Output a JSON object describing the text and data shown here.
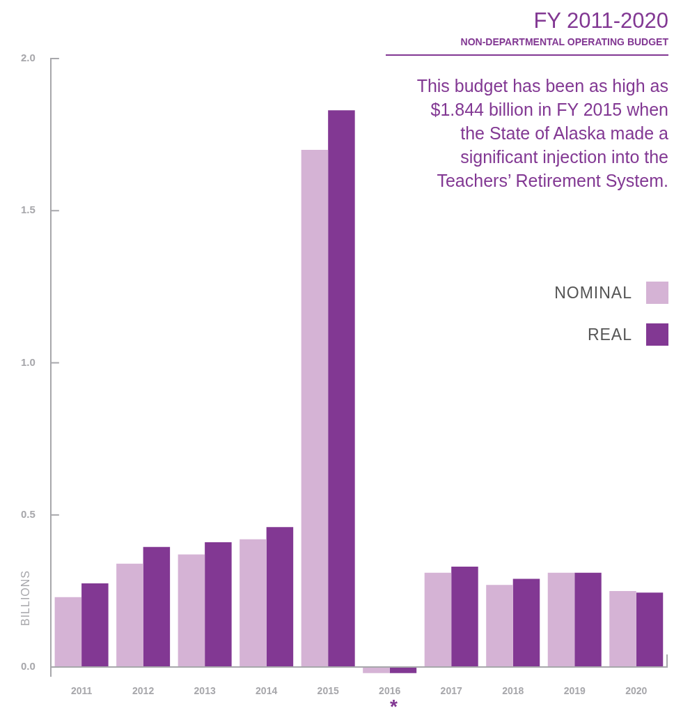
{
  "chart_data": {
    "type": "bar",
    "title": "FY 2011-2020",
    "subtitle": "NON-DEPARTMENTAL OPERATING BUDGET",
    "ylabel": "BILLIONS",
    "annotations": [
      "This budget has been as high as $1.844 billion in FY 2015 when the State of Alaska made a significant injection into the Teachers’ Retirement System.",
      "*"
    ],
    "categories": [
      "2011",
      "2012",
      "2013",
      "2014",
      "2015",
      "2016",
      "2017",
      "2018",
      "2019",
      "2020"
    ],
    "series": [
      {
        "name": "NOMINAL",
        "color": "#d5b3d5",
        "values": [
          0.23,
          0.34,
          0.37,
          0.42,
          1.7,
          -0.02,
          0.31,
          0.27,
          0.31,
          0.25
        ]
      },
      {
        "name": "REAL",
        "color": "#823893",
        "values": [
          0.275,
          0.395,
          0.41,
          0.46,
          1.83,
          -0.02,
          0.33,
          0.29,
          0.31,
          0.245
        ]
      }
    ],
    "ylim": [
      -0.03,
      2
    ],
    "yticks": [
      {
        "value": 0,
        "label": "0.0"
      },
      {
        "value": 0.5,
        "label": "0.5"
      },
      {
        "value": 1,
        "label": "1.0"
      },
      {
        "value": 1.5,
        "label": "1.5"
      },
      {
        "value": 2,
        "label": "2.0"
      }
    ],
    "grid": false,
    "legend": "right"
  }
}
